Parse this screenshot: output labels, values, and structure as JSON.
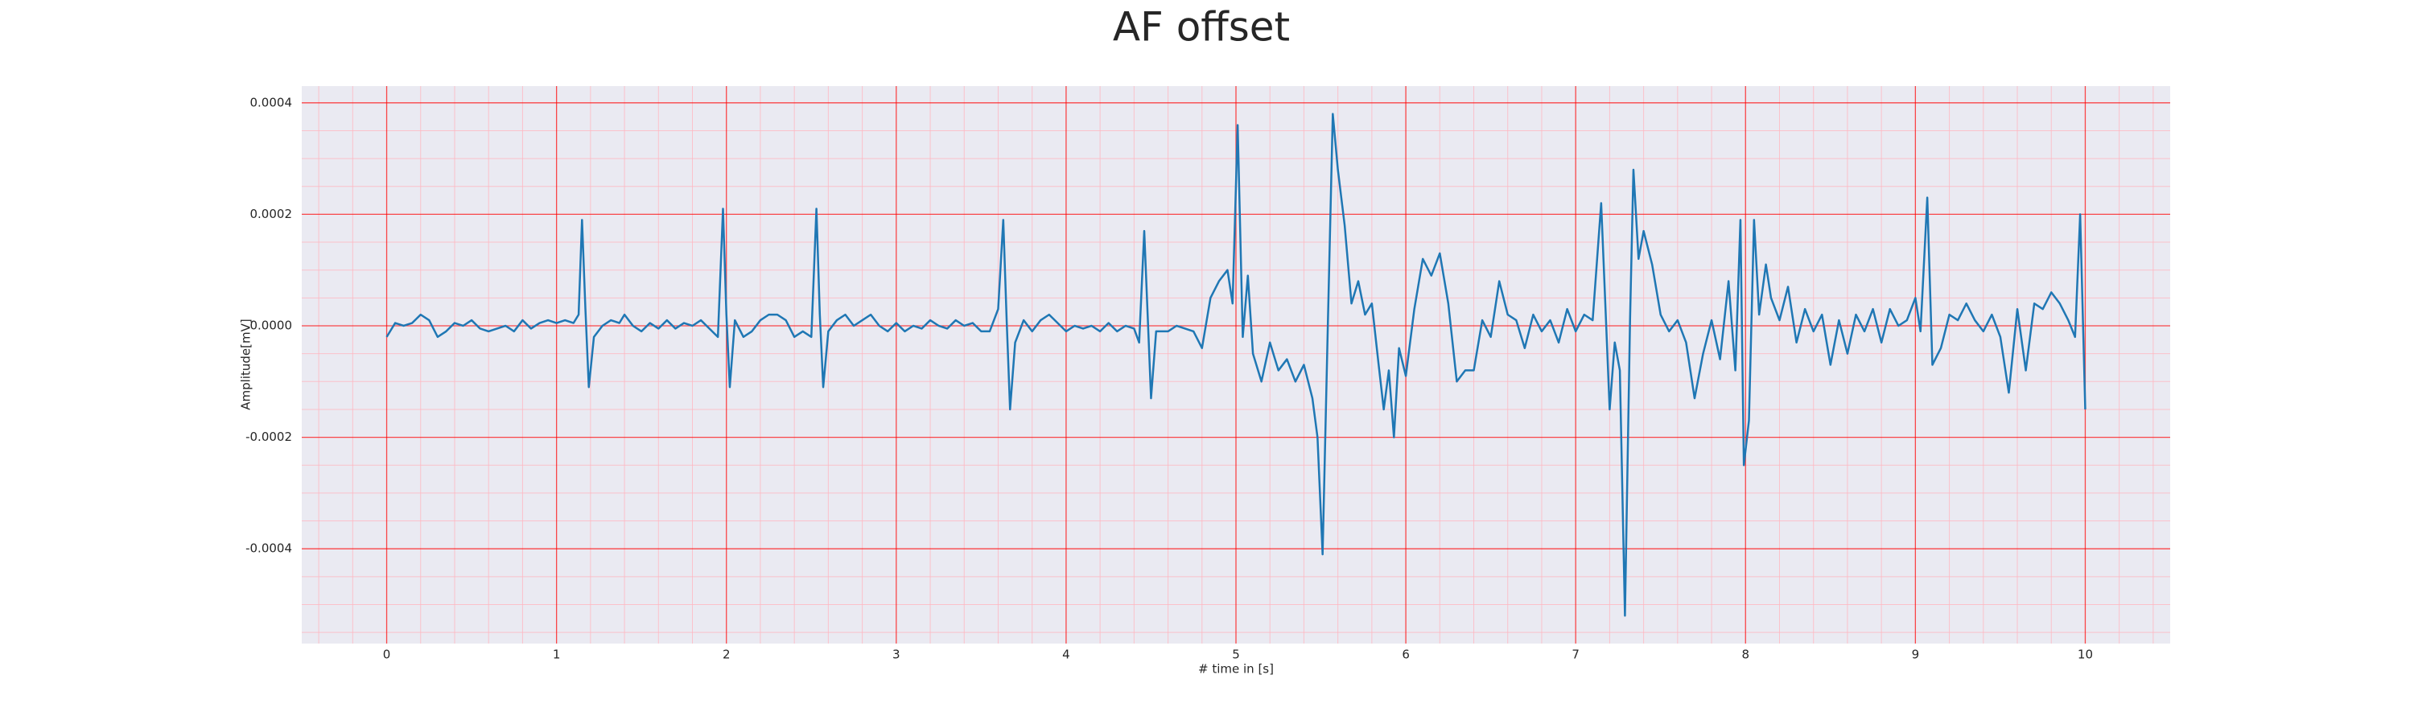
{
  "chart_data": {
    "type": "line",
    "title": "AF offset",
    "xlabel": "# time in [s]",
    "ylabel": "Amplitude[mV]",
    "xlim": [
      -0.5,
      10.5
    ],
    "ylim": [
      -0.00057,
      0.00043
    ],
    "xticks": [
      0,
      1,
      2,
      3,
      4,
      5,
      6,
      7,
      8,
      9,
      10
    ],
    "yticks": [
      -0.0004,
      -0.0002,
      {
        "value": 0,
        "label": "0.0000"
      },
      0.0002,
      0.0004
    ],
    "minor_xticks": [
      -0.4,
      -0.2,
      0.2,
      0.4,
      0.6,
      0.8,
      1.2,
      1.4,
      1.6,
      1.8,
      2.2,
      2.4,
      2.6,
      2.8,
      3.2,
      3.4,
      3.6,
      3.8,
      4.2,
      4.4,
      4.6,
      4.8,
      5.2,
      5.4,
      5.6,
      5.8,
      6.2,
      6.4,
      6.6,
      6.8,
      7.2,
      7.4,
      7.6,
      7.8,
      8.2,
      8.4,
      8.6,
      8.8,
      9.2,
      9.4,
      9.6,
      9.8,
      10.2,
      10.4
    ],
    "minor_yticks": [
      -0.00055,
      -0.0005,
      -0.00045,
      -0.00035,
      -0.0003,
      -0.00025,
      -0.00015,
      -0.0001,
      -5e-05,
      5e-05,
      0.0001,
      0.00015,
      0.00025,
      0.0003,
      0.00035
    ],
    "grid": true,
    "grid_color": "#ff0000",
    "minor_grid_color": "#ffb6c1",
    "background": "#eaeaf2",
    "series": [
      {
        "color": "#1f77b4",
        "x": [
          0,
          0.05,
          0.1,
          0.15,
          0.2,
          0.25,
          0.3,
          0.35,
          0.4,
          0.45,
          0.5,
          0.55,
          0.6,
          0.65,
          0.7,
          0.75,
          0.8,
          0.85,
          0.9,
          0.95,
          1.0,
          1.05,
          1.1,
          1.13,
          1.15,
          1.17,
          1.19,
          1.22,
          1.27,
          1.32,
          1.37,
          1.4,
          1.45,
          1.5,
          1.55,
          1.6,
          1.65,
          1.7,
          1.75,
          1.8,
          1.85,
          1.9,
          1.95,
          1.98,
          2.0,
          2.02,
          2.05,
          2.1,
          2.15,
          2.2,
          2.25,
          2.3,
          2.35,
          2.4,
          2.45,
          2.5,
          2.53,
          2.55,
          2.57,
          2.6,
          2.65,
          2.7,
          2.75,
          2.8,
          2.85,
          2.9,
          2.95,
          3.0,
          3.05,
          3.1,
          3.15,
          3.2,
          3.25,
          3.3,
          3.35,
          3.4,
          3.45,
          3.5,
          3.55,
          3.6,
          3.63,
          3.65,
          3.67,
          3.7,
          3.75,
          3.8,
          3.85,
          3.9,
          3.95,
          4.0,
          4.05,
          4.1,
          4.15,
          4.2,
          4.25,
          4.3,
          4.35,
          4.4,
          4.43,
          4.46,
          4.48,
          4.5,
          4.53,
          4.6,
          4.65,
          4.7,
          4.75,
          4.8,
          4.85,
          4.9,
          4.95,
          4.98,
          5.01,
          5.04,
          5.07,
          5.1,
          5.15,
          5.2,
          5.25,
          5.3,
          5.35,
          5.4,
          5.45,
          5.48,
          5.51,
          5.54,
          5.57,
          5.6,
          5.64,
          5.68,
          5.72,
          5.76,
          5.8,
          5.84,
          5.87,
          5.9,
          5.93,
          5.96,
          6.0,
          6.05,
          6.1,
          6.15,
          6.2,
          6.25,
          6.3,
          6.35,
          6.4,
          6.45,
          6.5,
          6.55,
          6.6,
          6.65,
          6.7,
          6.75,
          6.8,
          6.85,
          6.9,
          6.95,
          7.0,
          7.05,
          7.1,
          7.15,
          7.2,
          7.23,
          7.26,
          7.29,
          7.32,
          7.34,
          7.37,
          7.4,
          7.45,
          7.5,
          7.55,
          7.6,
          7.65,
          7.7,
          7.75,
          7.8,
          7.85,
          7.9,
          7.94,
          7.97,
          7.99,
          8.02,
          8.05,
          8.08,
          8.12,
          8.15,
          8.2,
          8.25,
          8.3,
          8.35,
          8.4,
          8.45,
          8.5,
          8.55,
          8.6,
          8.65,
          8.7,
          8.75,
          8.8,
          8.85,
          8.9,
          8.95,
          9.0,
          9.03,
          9.07,
          9.1,
          9.15,
          9.2,
          9.25,
          9.3,
          9.35,
          9.4,
          9.45,
          9.5,
          9.55,
          9.6,
          9.65,
          9.7,
          9.75,
          9.8,
          9.85,
          9.9,
          9.94,
          9.97,
          10.0
        ],
        "values": [
          -2e-05,
          5e-06,
          0,
          5e-06,
          2e-05,
          1e-05,
          -2e-05,
          -1e-05,
          5e-06,
          0,
          1e-05,
          -5e-06,
          -1e-05,
          -5e-06,
          0,
          -1e-05,
          1e-05,
          -5e-06,
          5e-06,
          1e-05,
          5e-06,
          1e-05,
          5e-06,
          2e-05,
          0.00019,
          3e-05,
          -0.00011,
          -2e-05,
          0,
          1e-05,
          5e-06,
          2e-05,
          0,
          -1e-05,
          5e-06,
          -5e-06,
          1e-05,
          -5e-06,
          5e-06,
          0,
          1e-05,
          -5e-06,
          -2e-05,
          0.00021,
          2e-05,
          -0.00011,
          1e-05,
          -2e-05,
          -1e-05,
          1e-05,
          2e-05,
          2e-05,
          1e-05,
          -2e-05,
          -1e-05,
          -2e-05,
          0.00021,
          2e-05,
          -0.00011,
          -1e-05,
          1e-05,
          2e-05,
          0,
          1e-05,
          2e-05,
          0,
          -1e-05,
          5e-06,
          -1e-05,
          0,
          -5e-06,
          1e-05,
          0,
          -5e-06,
          1e-05,
          0,
          5e-06,
          -1e-05,
          -1e-05,
          3e-05,
          0.00019,
          1e-05,
          -0.00015,
          -3e-05,
          1e-05,
          -1e-05,
          1e-05,
          2e-05,
          5e-06,
          -1e-05,
          0,
          -5e-06,
          0,
          -1e-05,
          5e-06,
          -1e-05,
          0,
          -5e-06,
          -3e-05,
          0.00017,
          2e-05,
          -0.00013,
          -1e-05,
          -1e-05,
          0,
          -5e-06,
          -1e-05,
          -4e-05,
          5e-05,
          8e-05,
          0.0001,
          4e-05,
          0.00036,
          -2e-05,
          9e-05,
          -5e-05,
          -0.0001,
          -3e-05,
          -8e-05,
          -6e-05,
          -0.0001,
          -7e-05,
          -0.00013,
          -0.0002,
          -0.00041,
          -1e-05,
          0.00038,
          0.00028,
          0.00018,
          4e-05,
          8e-05,
          2e-05,
          4e-05,
          -7e-05,
          -0.00015,
          -8e-05,
          -0.0002,
          -4e-05,
          -9e-05,
          3e-05,
          0.00012,
          9e-05,
          0.00013,
          4e-05,
          -0.0001,
          -8e-05,
          -8e-05,
          1e-05,
          -2e-05,
          8e-05,
          2e-05,
          1e-05,
          -4e-05,
          2e-05,
          -1e-05,
          1e-05,
          -3e-05,
          3e-05,
          -1e-05,
          2e-05,
          1e-05,
          0.00022,
          -0.00015,
          -3e-05,
          -8e-05,
          -0.00052,
          1e-05,
          0.00028,
          0.00012,
          0.00017,
          0.00011,
          2e-05,
          -1e-05,
          1e-05,
          -3e-05,
          -0.00013,
          -5e-05,
          1e-05,
          -6e-05,
          8e-05,
          -8e-05,
          0.00019,
          -0.00025,
          -0.00017,
          0.00019,
          2e-05,
          0.00011,
          5e-05,
          1e-05,
          7e-05,
          -3e-05,
          3e-05,
          -1e-05,
          2e-05,
          -7e-05,
          1e-05,
          -5e-05,
          2e-05,
          -1e-05,
          3e-05,
          -3e-05,
          3e-05,
          0,
          1e-05,
          5e-05,
          -1e-05,
          0.00023,
          -7e-05,
          -4e-05,
          2e-05,
          1e-05,
          4e-05,
          1e-05,
          -1e-05,
          2e-05,
          -2e-05,
          -0.00012,
          3e-05,
          -8e-05,
          4e-05,
          3e-05,
          6e-05,
          4e-05,
          1e-05,
          -2e-05,
          0.0002,
          -0.00015
        ]
      }
    ]
  }
}
